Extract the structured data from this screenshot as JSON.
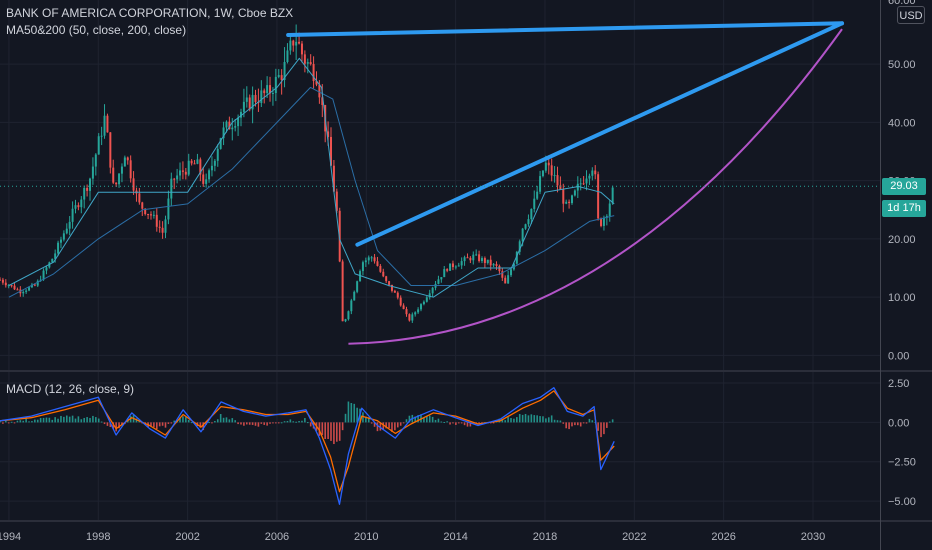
{
  "header": {
    "symbol_line": "BANK OF AMERICA CORPORATION, 1W, Cboe BZX",
    "ma_line": "MA50&200 (50, close, 200, close)",
    "macd_line": "MACD (12, 26, close, 9)",
    "currency": "USD"
  },
  "price_badge": {
    "price": "29.03",
    "countdown": "1d 17h",
    "color": "#26a69a"
  },
  "chart_data": {
    "type": "line",
    "price_axis": {
      "ticks": [
        0,
        10,
        20,
        30,
        40,
        50
      ],
      "tick_labels": [
        "0.00",
        "10.00",
        "20.00",
        "30.00",
        "40.00",
        "50.00"
      ],
      "top_partial_label": "60.00"
    },
    "macd_axis": {
      "ticks": [
        2.5,
        0,
        -2.5,
        -5
      ],
      "tick_labels": [
        "2.50",
        "0.00",
        "−2.50",
        "−5.00"
      ]
    },
    "time_axis": {
      "ticks": [
        1994,
        1998,
        2002,
        2006,
        2010,
        2014,
        2018,
        2022,
        2026,
        2030
      ],
      "tick_labels": [
        "1994",
        "1998",
        "2002",
        "2006",
        "2010",
        "2014",
        "2018",
        "2022",
        "2026",
        "2030"
      ]
    },
    "xlim": [
      1993.6,
      2033.0
    ],
    "ylim": [
      -2.5,
      61
    ],
    "macd_ylim": [
      -6.2,
      3.2
    ],
    "last_price": 29.03,
    "price": {
      "name": "",
      "x": [
        1993.6,
        1994.5,
        1995.2,
        1996.0,
        1996.8,
        1997.6,
        1998.3,
        1998.7,
        1999.2,
        1999.8,
        2000.4,
        2000.9,
        2001.3,
        2001.9,
        2002.4,
        2002.8,
        2003.5,
        2004.2,
        2004.9,
        2005.6,
        2006.3,
        2006.8,
        2007.2,
        2007.8,
        2008.3,
        2008.7,
        2008.95,
        2009.3,
        2009.8,
        2010.3,
        2010.8,
        2011.4,
        2011.9,
        2012.5,
        2013.0,
        2013.6,
        2014.2,
        2014.8,
        2015.4,
        2015.9,
        2016.2,
        2016.6,
        2017.0,
        2017.5,
        2018.0,
        2018.5,
        2019.0,
        2019.5,
        2020.0,
        2020.2,
        2020.4,
        2020.8,
        2021.1
      ],
      "values": [
        13,
        11,
        12,
        17,
        24,
        30,
        41,
        28,
        35,
        26,
        24,
        21,
        30,
        32,
        33,
        29,
        38,
        41,
        44,
        45,
        49,
        55,
        51,
        48,
        36,
        24,
        5,
        9,
        16,
        17,
        13,
        10,
        6,
        9,
        12,
        15,
        16,
        17,
        16,
        15,
        12,
        16,
        22,
        26,
        33,
        30,
        25,
        29,
        32,
        33,
        22,
        25,
        29
      ]
    },
    "ma50": {
      "name": "",
      "x": [
        1994,
        1996,
        1998,
        2000,
        2002,
        2004,
        2006,
        2007,
        2008,
        2008.8,
        2009.5,
        2011,
        2013,
        2015,
        2016.5,
        2018,
        2019.5,
        2020.5,
        2021.1
      ],
      "values": [
        12,
        16,
        28,
        28,
        28,
        40,
        46,
        51,
        46,
        20,
        14,
        12,
        10,
        15,
        15,
        28,
        29,
        28,
        26
      ]
    },
    "ma200": {
      "name": "",
      "x": [
        1994,
        1996,
        1998,
        2000,
        2002,
        2004,
        2006,
        2007.5,
        2008.5,
        2009.5,
        2010.5,
        2012,
        2014,
        2016,
        2018,
        2020,
        2021.1
      ],
      "values": [
        10,
        14,
        20,
        25,
        26,
        32,
        40,
        46,
        44,
        30,
        18,
        12,
        12,
        14,
        18,
        23,
        24
      ]
    },
    "annotations": [
      {
        "type": "trendline",
        "color": "#2e9af0",
        "from": [
          2006.5,
          55
        ],
        "to": [
          2031.3,
          57
        ]
      },
      {
        "type": "trendline",
        "color": "#2e9af0",
        "from": [
          2009.6,
          19
        ],
        "to": [
          2031.3,
          57
        ]
      },
      {
        "type": "curve",
        "color": "#b254c8",
        "from": [
          2009.2,
          2
        ],
        "to": [
          2031.3,
          56
        ]
      }
    ],
    "macd": {
      "x": [
        1993.6,
        1995,
        1996.5,
        1998,
        1998.8,
        1999.5,
        2000.3,
        2001,
        2001.8,
        2002.6,
        2003.5,
        2004.5,
        2005.5,
        2006.5,
        2007.3,
        2007.9,
        2008.4,
        2008.8,
        2009.2,
        2009.8,
        2010.5,
        2011.3,
        2012,
        2013,
        2014,
        2015,
        2016,
        2017,
        2017.8,
        2018.4,
        2019,
        2019.7,
        2020.2,
        2020.5,
        2021.1
      ],
      "values": [
        0.1,
        0.4,
        1.0,
        1.6,
        -0.8,
        0.6,
        -0.4,
        -1.0,
        0.8,
        -0.6,
        1.3,
        0.7,
        0.4,
        0.6,
        0.8,
        -1.0,
        -3.0,
        -5.2,
        -2.0,
        0.9,
        -0.2,
        -1.0,
        0.2,
        0.8,
        0.3,
        -0.2,
        0.2,
        1.2,
        1.6,
        2.2,
        0.7,
        0.4,
        1.0,
        -3.0,
        -1.2
      ]
    },
    "signal": {
      "x": [
        1993.6,
        1995,
        1996.5,
        1998,
        1998.8,
        1999.5,
        2000.3,
        2001,
        2001.8,
        2002.6,
        2003.5,
        2004.5,
        2005.5,
        2006.5,
        2007.3,
        2007.9,
        2008.4,
        2008.8,
        2009.2,
        2009.8,
        2010.5,
        2011.3,
        2012,
        2013,
        2014,
        2015,
        2016,
        2017,
        2017.8,
        2018.4,
        2019,
        2019.7,
        2020.2,
        2020.5,
        2021.1
      ],
      "values": [
        0.1,
        0.3,
        0.8,
        1.4,
        -0.4,
        0.3,
        -0.2,
        -0.8,
        0.5,
        -0.3,
        1.0,
        0.8,
        0.5,
        0.5,
        0.7,
        -0.5,
        -2.2,
        -4.4,
        -2.8,
        0.4,
        0.1,
        -0.7,
        -0.1,
        0.6,
        0.4,
        -0.1,
        0.1,
        0.9,
        1.4,
        2.0,
        0.9,
        0.5,
        0.8,
        -2.4,
        -1.5
      ]
    },
    "colors": {
      "up": "#26a69a",
      "down": "#ef5350",
      "macd": "#2962ff",
      "signal": "#ff6d00",
      "ma50": "#3fa6c7",
      "ma200": "#2b6ea6",
      "hist_up": "#26a69a",
      "hist_down": "#ef5350"
    }
  }
}
